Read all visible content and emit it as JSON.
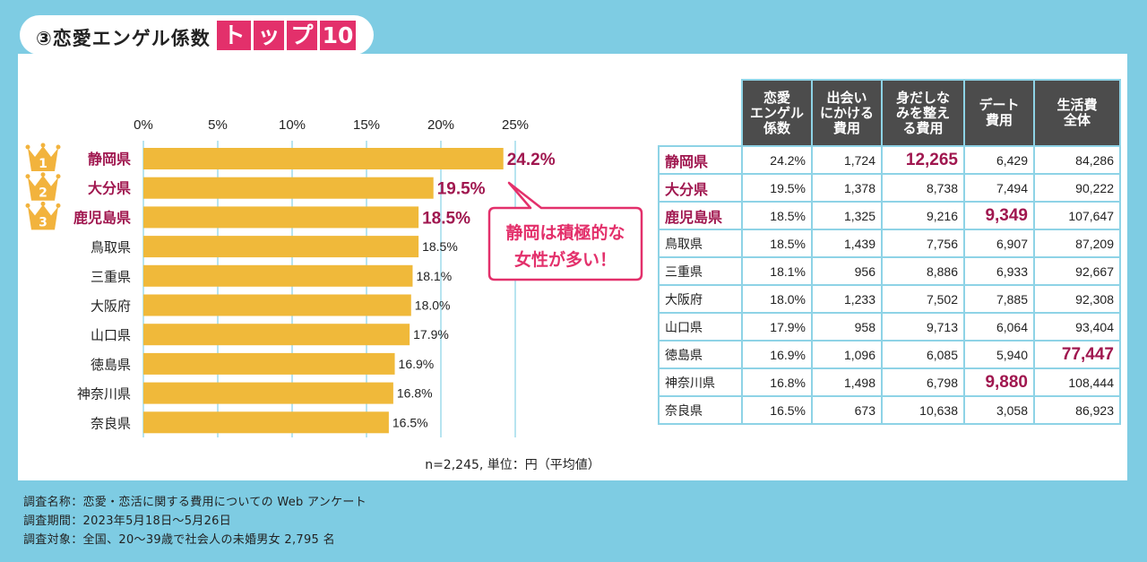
{
  "header": {
    "title": "③恋愛エンゲル係数",
    "badge": [
      "ト",
      "ッ",
      "プ",
      "10"
    ]
  },
  "chart_data": {
    "type": "bar",
    "orientation": "horizontal",
    "categories": [
      "静岡県",
      "大分県",
      "鹿児島県",
      "鳥取県",
      "三重県",
      "大阪府",
      "山口県",
      "徳島県",
      "神奈川県",
      "奈良県"
    ],
    "values": [
      24.2,
      19.5,
      18.5,
      18.5,
      18.1,
      18.0,
      17.9,
      16.9,
      16.8,
      16.5
    ],
    "value_labels": [
      "24.2%",
      "19.5%",
      "18.5%",
      "18.5%",
      "18.1%",
      "18.0%",
      "17.9%",
      "16.9%",
      "16.8%",
      "16.5%"
    ],
    "xlim": [
      0,
      25
    ],
    "xticks": [
      "0%",
      "5%",
      "10%",
      "15%",
      "20%",
      "25%"
    ],
    "xtick_values": [
      0,
      5,
      10,
      15,
      20,
      25
    ],
    "grid": true,
    "rank_badges": [
      "1",
      "2",
      "3"
    ],
    "callout": [
      "静岡は積極的な",
      "女性が多い！"
    ],
    "note": "n=2,245, 単位：円（平均値）",
    "colors": {
      "bar": "#f0b93a",
      "highlight": "#a0174f",
      "accent": "#e3306b",
      "grid": "#9fdcec",
      "crown": "#f2b33d"
    }
  },
  "table": {
    "columns": [
      "恋愛\nエンゲル\n係数",
      "出会い\nにかける\n費用",
      "身だしな\nみを整え\nる費用",
      "デート\n費用",
      "生活費\n全体"
    ],
    "rows": [
      {
        "pref": "静岡県",
        "cells": [
          "24.2%",
          "1,724",
          "12,265",
          "6,429",
          "84,286"
        ]
      },
      {
        "pref": "大分県",
        "cells": [
          "19.5%",
          "1,378",
          "8,738",
          "7,494",
          "90,222"
        ]
      },
      {
        "pref": "鹿児島県",
        "cells": [
          "18.5%",
          "1,325",
          "9,216",
          "9,349",
          "107,647"
        ]
      },
      {
        "pref": "鳥取県",
        "cells": [
          "18.5%",
          "1,439",
          "7,756",
          "6,907",
          "87,209"
        ]
      },
      {
        "pref": "三重県",
        "cells": [
          "18.1%",
          "956",
          "8,886",
          "6,933",
          "92,667"
        ]
      },
      {
        "pref": "大阪府",
        "cells": [
          "18.0%",
          "1,233",
          "7,502",
          "7,885",
          "92,308"
        ]
      },
      {
        "pref": "山口県",
        "cells": [
          "17.9%",
          "958",
          "9,713",
          "6,064",
          "93,404"
        ]
      },
      {
        "pref": "徳島県",
        "cells": [
          "16.9%",
          "1,096",
          "6,085",
          "5,940",
          "77,447"
        ]
      },
      {
        "pref": "神奈川県",
        "cells": [
          "16.8%",
          "1,498",
          "6,798",
          "9,880",
          "108,444"
        ]
      },
      {
        "pref": "奈良県",
        "cells": [
          "16.5%",
          "673",
          "10,638",
          "3,058",
          "86,923"
        ]
      }
    ],
    "highlights": [
      [
        0,
        2
      ],
      [
        2,
        3
      ],
      [
        7,
        4
      ],
      [
        8,
        3
      ]
    ]
  },
  "footer": [
    "調査名称：恋愛・恋活に関する費用についての Web アンケート",
    "調査期間：2023年5月18日〜5月26日",
    "調査対象：全国、20〜39歳で社会人の未婚男女 2,795 名"
  ]
}
